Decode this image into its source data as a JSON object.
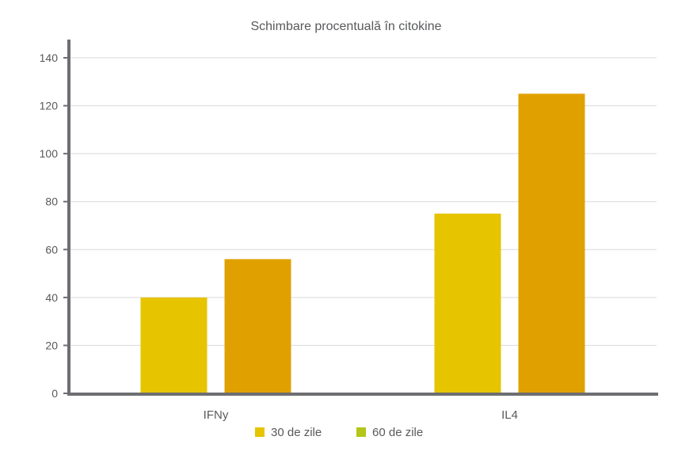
{
  "chart_data": {
    "type": "bar",
    "title": "Schimbare procentuală în citokine",
    "categories": [
      "IFNy",
      "IL4"
    ],
    "series": [
      {
        "name": "30 de zile",
        "values": [
          40,
          75
        ],
        "color": "#e6c400"
      },
      {
        "name": "60 de zile",
        "values": [
          56,
          125
        ],
        "color": "#e0a100"
      }
    ],
    "ylim": [
      0,
      140
    ],
    "yticks": [
      0,
      20,
      40,
      60,
      80,
      100,
      120,
      140
    ],
    "grid": true,
    "legend": {
      "placement": "bottom",
      "entries": [
        {
          "label": "30 de zile",
          "color": "#e6c400"
        },
        {
          "label": "60 de zile",
          "color": "#b3c619"
        }
      ]
    }
  }
}
